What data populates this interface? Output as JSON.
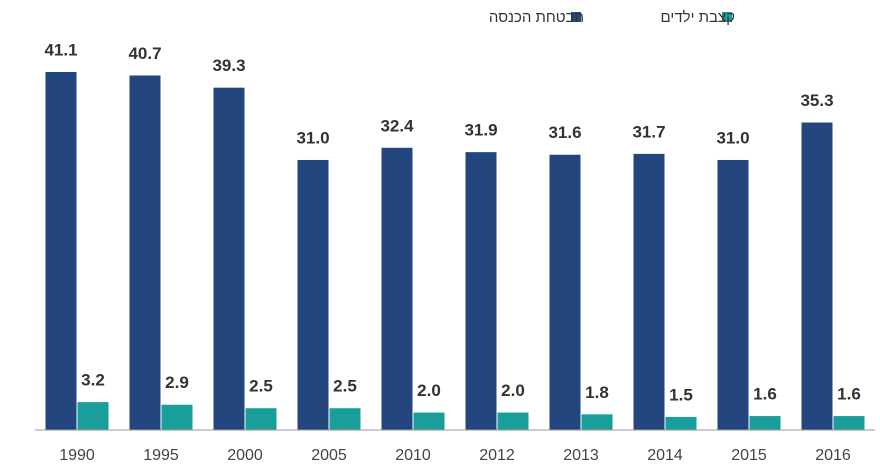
{
  "chart_data": {
    "type": "bar",
    "categories": [
      "1990",
      "1995",
      "2000",
      "2005",
      "2010",
      "2012",
      "2013",
      "2014",
      "2015",
      "2016"
    ],
    "series": [
      {
        "name": "הבטחת הכנסה",
        "color": "#23467e",
        "values": [
          41.1,
          40.7,
          39.3,
          31.0,
          32.4,
          31.9,
          31.6,
          31.7,
          31.0,
          35.3
        ],
        "value_labels": [
          "41.1",
          "40.7",
          "39.3",
          "31.0",
          "32.4",
          "31.9",
          "31.6",
          "31.7",
          "31.0",
          "35.3"
        ]
      },
      {
        "name": "קצבת ילדים",
        "color": "#1a9e9b",
        "values": [
          3.2,
          2.9,
          2.5,
          2.5,
          2.0,
          2.0,
          1.8,
          1.5,
          1.6,
          1.6
        ],
        "value_labels": [
          "3.2",
          "2.9",
          "2.5",
          "2.5",
          "2.0",
          "2.0",
          "1.8",
          "1.5",
          "1.6",
          "1.6"
        ]
      }
    ],
    "legend": "top-right"
  }
}
